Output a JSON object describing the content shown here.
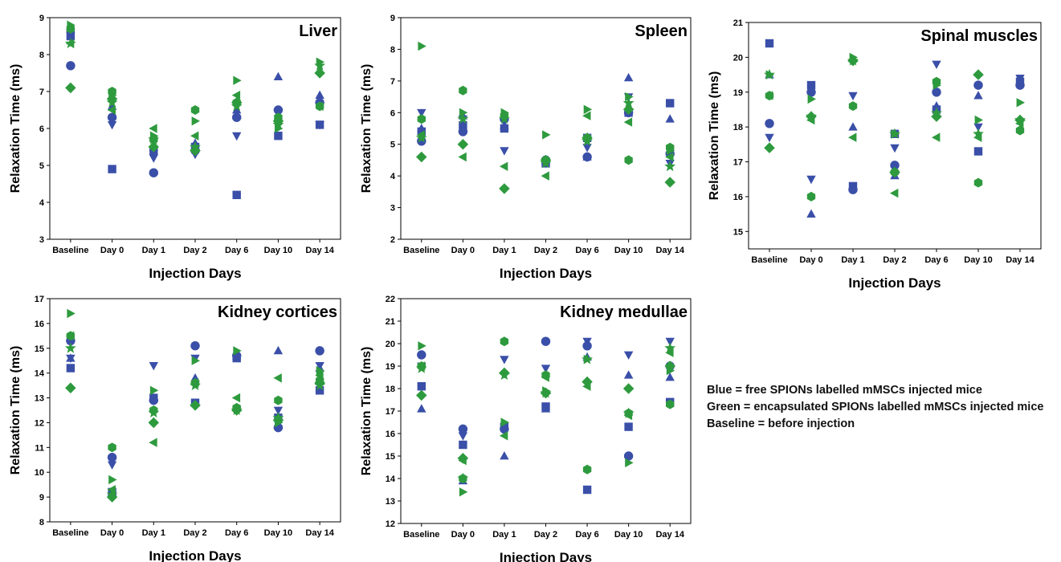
{
  "colors": {
    "blue": "#3A4FA8",
    "green": "#2E9A3E",
    "axis": "#000000"
  },
  "legend_lines": [
    "Blue = free SPIONs labelled mMSCs injected mice",
    "Green = encapsulated SPIONs labelled mMSCs injected mice",
    "Baseline = before injection"
  ],
  "marker_shapes": [
    "square",
    "circle",
    "triangle-up",
    "triangle-down",
    "diamond",
    "triangle-left",
    "triangle-right",
    "hexagon",
    "star"
  ],
  "chart_data": [
    {
      "type": "scatter",
      "title": "Liver",
      "xlabel": "Injection Days",
      "ylabel": "Relaxation Time (ms)",
      "categories": [
        "Baseline",
        "Day 0",
        "Day 1",
        "Day 2",
        "Day 6",
        "Day 10",
        "Day 14"
      ],
      "ylim": [
        3,
        9
      ],
      "yticks": [
        3,
        4,
        5,
        6,
        7,
        8,
        9
      ],
      "series": [
        {
          "color": "blue",
          "shape": "square",
          "values": [
            8.5,
            4.9,
            5.4,
            5.5,
            4.2,
            5.8,
            6.1
          ]
        },
        {
          "color": "blue",
          "shape": "circle",
          "values": [
            7.7,
            6.3,
            4.8,
            5.4,
            6.3,
            6.5,
            6.7
          ]
        },
        {
          "color": "blue",
          "shape": "triangle-up",
          "values": [
            8.7,
            6.6,
            5.5,
            5.6,
            6.5,
            7.4,
            6.9
          ]
        },
        {
          "color": "blue",
          "shape": "triangle-down",
          "values": [
            8.6,
            6.1,
            5.2,
            5.3,
            5.8,
            6.4,
            6.1
          ]
        },
        {
          "color": "green",
          "shape": "diamond",
          "values": [
            7.1,
            6.8,
            5.5,
            5.4,
            6.7,
            6.2,
            7.5
          ]
        },
        {
          "color": "green",
          "shape": "triangle-left",
          "values": [
            8.3,
            6.5,
            6.0,
            5.8,
            6.9,
            6.2,
            6.6
          ]
        },
        {
          "color": "green",
          "shape": "triangle-right",
          "values": [
            8.8,
            6.9,
            5.8,
            6.2,
            7.3,
            6.0,
            7.8
          ]
        },
        {
          "color": "green",
          "shape": "hexagon",
          "values": [
            8.7,
            7.0,
            5.7,
            6.5,
            6.7,
            6.3,
            6.6
          ]
        },
        {
          "color": "green",
          "shape": "star",
          "values": [
            8.3,
            6.7,
            5.7,
            5.5,
            6.6,
            6.1,
            7.7
          ]
        }
      ]
    },
    {
      "type": "scatter",
      "title": "Spleen",
      "xlabel": "Injection Days",
      "ylabel": "Relaxation Time (ms)",
      "categories": [
        "Baseline",
        "Day 0",
        "Day 1",
        "Day 2",
        "Day 6",
        "Day 10",
        "Day 14"
      ],
      "ylim": [
        2,
        9
      ],
      "yticks": [
        2,
        3,
        4,
        5,
        6,
        7,
        8,
        9
      ],
      "series": [
        {
          "color": "blue",
          "shape": "square",
          "values": [
            5.4,
            5.6,
            5.5,
            4.4,
            5.2,
            6.0,
            6.3
          ]
        },
        {
          "color": "blue",
          "shape": "circle",
          "values": [
            5.1,
            5.4,
            5.8,
            4.5,
            4.6,
            6.0,
            4.7
          ]
        },
        {
          "color": "blue",
          "shape": "triangle-up",
          "values": [
            5.5,
            5.9,
            5.6,
            4.5,
            4.6,
            7.1,
            5.8
          ]
        },
        {
          "color": "blue",
          "shape": "triangle-down",
          "values": [
            6.0,
            5.8,
            4.8,
            4.4,
            4.9,
            6.5,
            4.4
          ]
        },
        {
          "color": "green",
          "shape": "diamond",
          "values": [
            4.6,
            5.0,
            3.6,
            4.5,
            5.2,
            6.1,
            3.8
          ]
        },
        {
          "color": "green",
          "shape": "triangle-left",
          "values": [
            5.3,
            4.6,
            4.3,
            4.0,
            5.9,
            5.7,
            4.6
          ]
        },
        {
          "color": "green",
          "shape": "triangle-right",
          "values": [
            8.1,
            6.0,
            6.0,
            5.3,
            6.1,
            6.5,
            4.8
          ]
        },
        {
          "color": "green",
          "shape": "hexagon",
          "values": [
            5.8,
            6.7,
            5.9,
            4.5,
            5.2,
            4.5,
            4.9
          ]
        },
        {
          "color": "green",
          "shape": "star",
          "values": [
            5.2,
            5.8,
            5.8,
            4.4,
            5.1,
            6.3,
            4.3
          ]
        }
      ]
    },
    {
      "type": "scatter",
      "title": "Spinal muscles",
      "xlabel": "Injection Days",
      "ylabel": "Relaxation Time (ms)",
      "categories": [
        "Baseline",
        "Day 0",
        "Day 1",
        "Day 2",
        "Day 6",
        "Day 10",
        "Day 14"
      ],
      "ylim": [
        14.5,
        21
      ],
      "yticks": [
        15,
        16,
        17,
        18,
        19,
        20,
        21
      ],
      "series": [
        {
          "color": "blue",
          "shape": "square",
          "values": [
            20.4,
            19.2,
            16.3,
            17.8,
            18.5,
            17.3,
            19.3
          ]
        },
        {
          "color": "blue",
          "shape": "circle",
          "values": [
            18.1,
            19.0,
            16.2,
            16.9,
            19.0,
            19.2,
            19.2
          ]
        },
        {
          "color": "blue",
          "shape": "triangle-up",
          "values": [
            19.5,
            15.5,
            18.0,
            16.6,
            18.6,
            18.9,
            19.3
          ]
        },
        {
          "color": "blue",
          "shape": "triangle-down",
          "values": [
            17.7,
            16.5,
            18.9,
            17.4,
            19.8,
            18.0,
            19.4
          ]
        },
        {
          "color": "green",
          "shape": "diamond",
          "values": [
            17.4,
            18.3,
            19.9,
            16.7,
            18.3,
            19.5,
            18.2
          ]
        },
        {
          "color": "green",
          "shape": "triangle-left",
          "values": [
            18.9,
            18.2,
            17.7,
            16.1,
            17.7,
            17.7,
            18.1
          ]
        },
        {
          "color": "green",
          "shape": "triangle-right",
          "values": [
            19.5,
            18.8,
            20.0,
            17.8,
            19.2,
            18.2,
            18.7
          ]
        },
        {
          "color": "green",
          "shape": "hexagon",
          "values": [
            18.9,
            16.0,
            18.6,
            16.7,
            19.3,
            16.4,
            17.9
          ]
        },
        {
          "color": "green",
          "shape": "star",
          "values": [
            19.5,
            18.3,
            19.9,
            17.8,
            18.4,
            17.8,
            18.2
          ]
        }
      ]
    },
    {
      "type": "scatter",
      "title": "Kidney cortices",
      "xlabel": "Injection Days",
      "ylabel": "Relaxation Time (ms)",
      "categories": [
        "Baseline",
        "Day 0",
        "Day 1",
        "Day 2",
        "Day 6",
        "Day 10",
        "Day 14"
      ],
      "ylim": [
        8,
        17
      ],
      "yticks": [
        8,
        9,
        10,
        11,
        12,
        13,
        14,
        15,
        16,
        17
      ],
      "series": [
        {
          "color": "blue",
          "shape": "square",
          "values": [
            14.2,
            9.2,
            13.0,
            12.8,
            14.6,
            12.2,
            13.3
          ]
        },
        {
          "color": "blue",
          "shape": "circle",
          "values": [
            15.3,
            10.6,
            12.9,
            15.1,
            14.7,
            11.8,
            14.9
          ]
        },
        {
          "color": "blue",
          "shape": "triangle-up",
          "values": [
            14.6,
            9.2,
            13.0,
            13.8,
            14.7,
            14.9,
            14.2
          ]
        },
        {
          "color": "blue",
          "shape": "triangle-down",
          "values": [
            14.6,
            10.3,
            14.3,
            14.6,
            12.5,
            12.5,
            14.3
          ]
        },
        {
          "color": "green",
          "shape": "diamond",
          "values": [
            13.4,
            9.0,
            12.0,
            12.7,
            12.5,
            12.1,
            13.6
          ]
        },
        {
          "color": "green",
          "shape": "triangle-left",
          "values": [
            15.5,
            9.3,
            11.2,
            13.6,
            13.0,
            13.8,
            13.9
          ]
        },
        {
          "color": "green",
          "shape": "triangle-right",
          "values": [
            16.4,
            9.7,
            13.3,
            14.5,
            14.9,
            12.0,
            14.1
          ]
        },
        {
          "color": "green",
          "shape": "hexagon",
          "values": [
            15.5,
            11.0,
            12.5,
            13.6,
            12.6,
            12.9,
            13.7
          ]
        },
        {
          "color": "green",
          "shape": "star",
          "values": [
            15.0,
            9.1,
            12.4,
            13.5,
            12.5,
            12.2,
            13.5
          ]
        }
      ]
    },
    {
      "type": "scatter",
      "title": "Kidney medullae",
      "xlabel": "Injection Days",
      "ylabel": "Relaxation Time (ms)",
      "categories": [
        "Baseline",
        "Day 0",
        "Day 1",
        "Day 2",
        "Day 6",
        "Day 10",
        "Day 14"
      ],
      "ylim": [
        12,
        22
      ],
      "yticks": [
        12,
        13,
        14,
        15,
        16,
        17,
        18,
        19,
        20,
        21,
        22
      ],
      "series": [
        {
          "color": "blue",
          "shape": "square",
          "values": [
            18.1,
            15.5,
            16.3,
            17.2,
            13.5,
            16.3,
            17.4
          ]
        },
        {
          "color": "blue",
          "shape": "circle",
          "values": [
            19.5,
            16.2,
            16.2,
            20.1,
            19.9,
            15.0,
            19.0
          ]
        },
        {
          "color": "blue",
          "shape": "triangle-up",
          "values": [
            17.1,
            13.9,
            15.0,
            17.1,
            19.4,
            18.6,
            18.5
          ]
        },
        {
          "color": "blue",
          "shape": "triangle-down",
          "values": [
            19.0,
            15.9,
            19.3,
            18.9,
            20.1,
            19.5,
            20.1
          ]
        },
        {
          "color": "green",
          "shape": "diamond",
          "values": [
            17.7,
            14.9,
            18.7,
            17.8,
            18.3,
            18.0,
            19.0
          ]
        },
        {
          "color": "green",
          "shape": "triangle-left",
          "values": [
            19.0,
            14.8,
            15.9,
            18.5,
            18.1,
            16.8,
            19.6
          ]
        },
        {
          "color": "green",
          "shape": "triangle-right",
          "values": [
            19.9,
            13.4,
            16.5,
            17.9,
            19.3,
            14.7,
            18.8
          ]
        },
        {
          "color": "green",
          "shape": "hexagon",
          "values": [
            19.0,
            14.0,
            20.1,
            18.6,
            14.4,
            16.9,
            17.3
          ]
        },
        {
          "color": "green",
          "shape": "star",
          "values": [
            18.9,
            14.0,
            18.6,
            17.8,
            19.3,
            16.9,
            19.8
          ]
        }
      ]
    }
  ]
}
